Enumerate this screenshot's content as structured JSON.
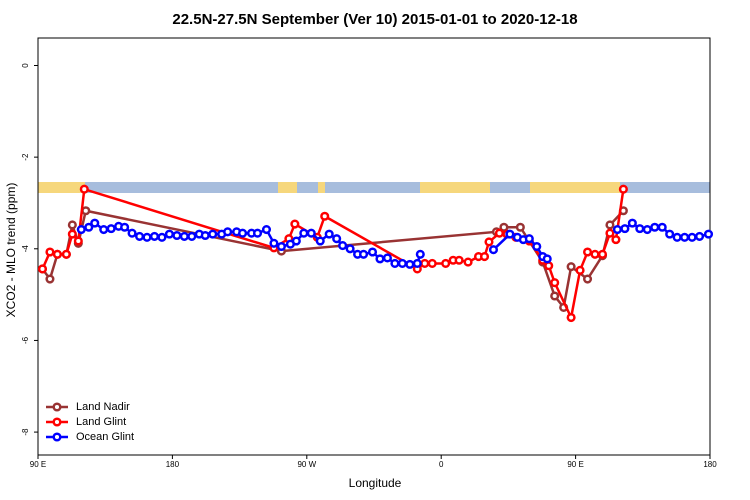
{
  "chart_data": {
    "type": "line",
    "title": "22.5N-27.5N September (Ver 10)   2015-01-01 to 2020-12-18",
    "x_label": "Longitude",
    "y_label": "XCO2 - MLO trend (ppm)",
    "xlim": [
      90,
      540
    ],
    "ylim": [
      -8.5,
      0.6
    ],
    "xticks": [
      {
        "value": 90,
        "label": "90 E"
      },
      180,
      {
        "value": 270,
        "label": "90 W"
      },
      {
        "value": 360,
        "label": "0"
      },
      {
        "value": 450,
        "label": "90 E"
      },
      {
        "value": 540,
        "label": "180"
      }
    ],
    "yticks": [
      0,
      -2,
      -4,
      -6,
      -8
    ],
    "legend": "bottom-left",
    "series": [
      {
        "name": "Land Nadir",
        "color": "#993333",
        "x": [
          93,
          98,
          103,
          109,
          113,
          117,
          122,
          253,
          397,
          402,
          413,
          428,
          436,
          442,
          447,
          458,
          468,
          473,
          482
        ],
        "values": [
          -4.44,
          -4.66,
          -4.12,
          -4.12,
          -3.48,
          -3.88,
          -3.17,
          -4.05,
          -3.63,
          -3.53,
          -3.53,
          -4.29,
          -5.03,
          -5.28,
          -4.39,
          -4.66,
          -4.15,
          -3.48,
          -3.17
        ]
      },
      {
        "name": "Land Glint",
        "color": "#ff0000",
        "x": [
          93,
          98,
          103,
          109,
          113,
          117,
          121,
          248,
          258,
          262,
          277,
          282,
          344,
          349,
          354,
          363,
          368,
          372,
          378,
          385,
          389,
          392,
          399,
          404,
          410,
          419,
          428,
          432,
          436,
          447,
          453,
          458,
          463,
          468,
          473,
          477,
          482
        ],
        "values": [
          -4.44,
          -4.07,
          -4.12,
          -4.12,
          -3.68,
          -3.83,
          -2.7,
          -3.98,
          -3.78,
          -3.46,
          -3.75,
          -3.29,
          -4.44,
          -4.32,
          -4.32,
          -4.32,
          -4.25,
          -4.25,
          -4.29,
          -4.17,
          -4.17,
          -3.85,
          -3.66,
          -3.68,
          -3.75,
          -3.83,
          -4.25,
          -4.37,
          -4.74,
          -5.5,
          -4.47,
          -4.07,
          -4.12,
          -4.12,
          -3.66,
          -3.8,
          -2.7
        ]
      },
      {
        "name": "Ocean Glint",
        "color": "#0000ff",
        "x": [
          119,
          124,
          128,
          134,
          139,
          144,
          148,
          153,
          158,
          163,
          168,
          173,
          178,
          183,
          188,
          193,
          198,
          202,
          207,
          213,
          217,
          223,
          227,
          233,
          237,
          243,
          248,
          253,
          259,
          263,
          268,
          273,
          279,
          285,
          290,
          294,
          299,
          304,
          308,
          314,
          319,
          324,
          329,
          334,
          339,
          344,
          346,
          370,
          395,
          406,
          411,
          415,
          419,
          424,
          428,
          431,
          455,
          478,
          483,
          488,
          493,
          498,
          503,
          508,
          513,
          518,
          523,
          528,
          533,
          539
        ],
        "values": [
          -3.58,
          -3.53,
          -3.44,
          -3.58,
          -3.56,
          -3.51,
          -3.53,
          -3.66,
          -3.73,
          -3.75,
          -3.73,
          -3.75,
          -3.68,
          -3.71,
          -3.73,
          -3.73,
          -3.68,
          -3.71,
          -3.68,
          -3.68,
          -3.63,
          -3.63,
          -3.66,
          -3.66,
          -3.66,
          -3.58,
          -3.88,
          -3.95,
          -3.9,
          -3.83,
          -3.66,
          -3.66,
          -3.83,
          -3.68,
          -3.78,
          -3.93,
          -4.0,
          -4.12,
          -4.12,
          -4.07,
          -4.22,
          -4.2,
          -4.32,
          -4.32,
          -4.34,
          -4.32,
          -4.12,
          null,
          -4.02,
          -3.68,
          -3.75,
          -3.8,
          -3.78,
          -3.95,
          -4.17,
          -4.22,
          null,
          -3.58,
          -3.56,
          -3.44,
          -3.56,
          -3.58,
          -3.53,
          -3.53,
          -3.68,
          -3.75,
          -3.75,
          -3.75,
          -3.73,
          -3.68
        ]
      }
    ]
  }
}
